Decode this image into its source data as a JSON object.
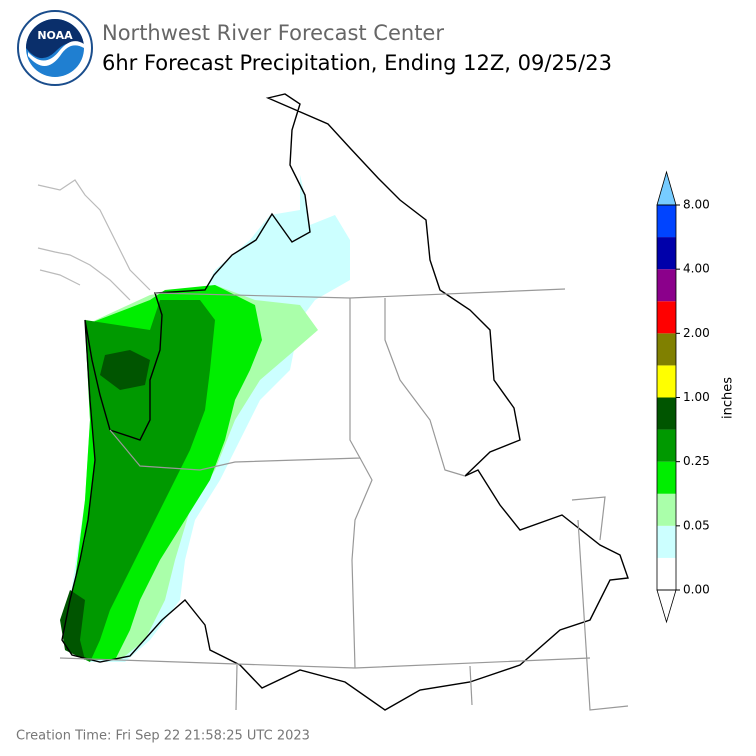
{
  "header": {
    "logo_text": "NOAA",
    "title": "Northwest River Forecast Center",
    "subtitle": "6hr Forecast Precipitation, Ending 12Z, 09/25/23"
  },
  "colorbar": {
    "label": "inches",
    "ticks": [
      "0.00",
      "0.05",
      "0.25",
      "1.00",
      "2.00",
      "4.00",
      "8.00"
    ],
    "colors": [
      "#ffffff",
      "#ccffff",
      "#aaffaa",
      "#00ee00",
      "#009900",
      "#005500",
      "#ffff00",
      "#808000",
      "#ff0000",
      "#8b008b",
      "#0000aa",
      "#0044ff"
    ],
    "over_color": "#77ccff",
    "under_color": "#ffffff"
  },
  "footer": {
    "creation_time": "Creation Time: Fri Sep 22 21:58:25 UTC 2023"
  }
}
